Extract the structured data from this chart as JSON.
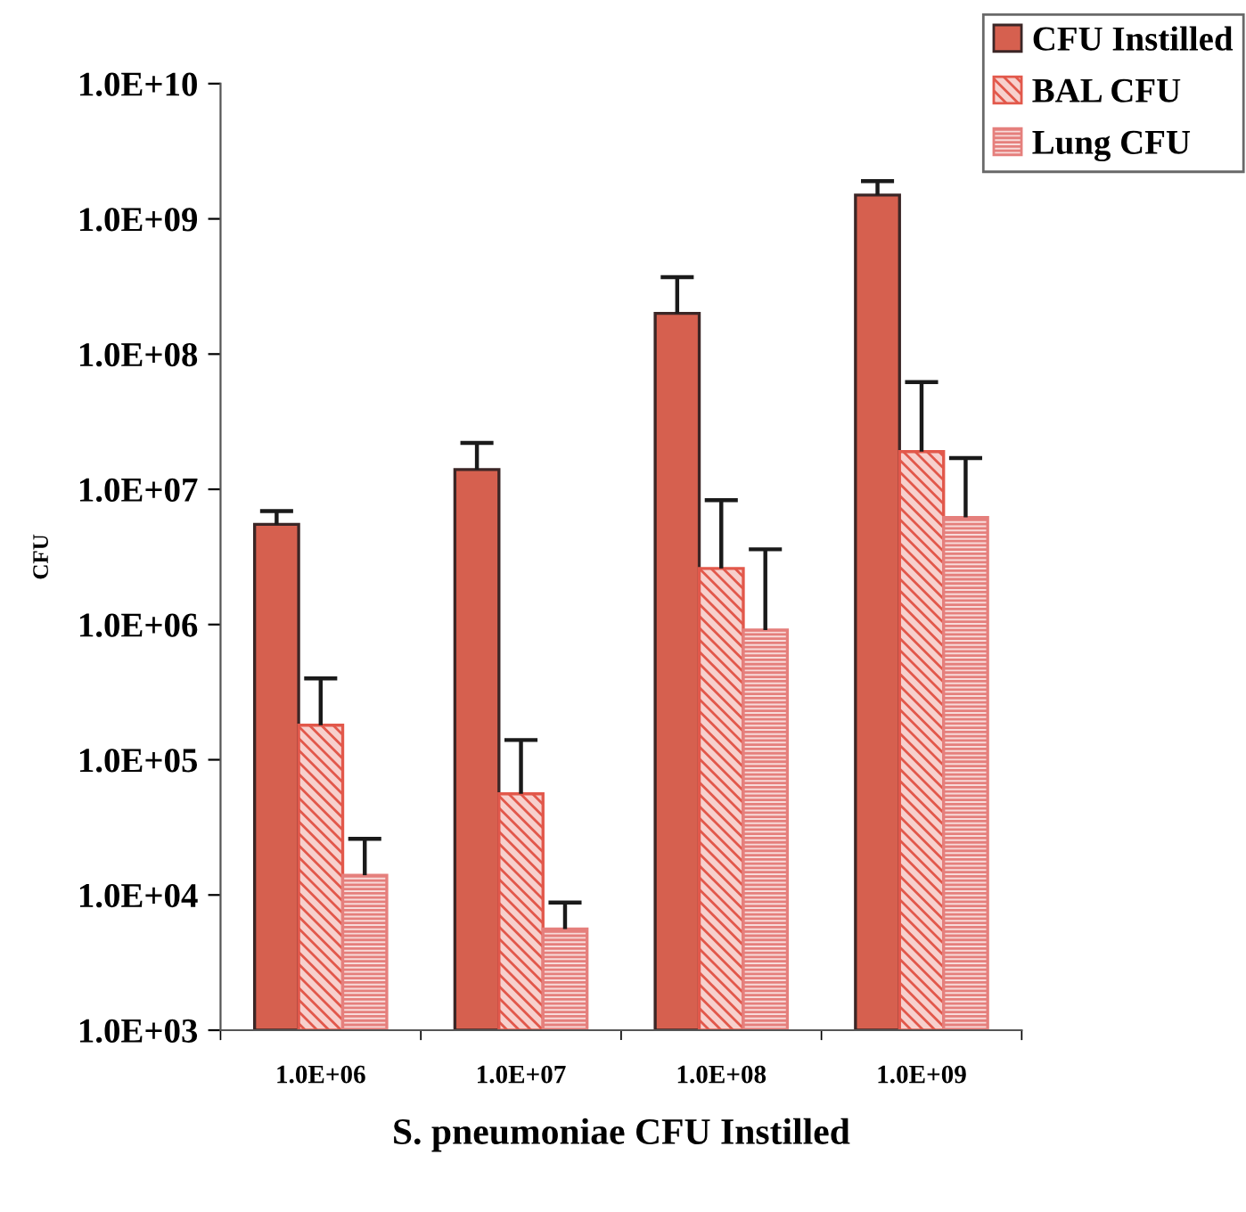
{
  "chart_data": {
    "type": "bar",
    "xlabel": "S. pneumoniae CFU Instilled",
    "ylabel": "CFU",
    "categories": [
      "1.0E+06",
      "1.0E+07",
      "1.0E+08",
      "1.0E+09"
    ],
    "series": [
      {
        "name": "CFU Instilled",
        "color": "#d6604f",
        "values": [
          5500000.0,
          14000000.0,
          200000000.0,
          1500000000.0
        ],
        "errors": [
          [
            5500000.0,
            6900000.0
          ],
          [
            14000000.0,
            22000000.0
          ],
          [
            200000000.0,
            370000000.0
          ],
          [
            1500000000.0,
            1900000000.0
          ]
        ]
      },
      {
        "name": "BAL CFU",
        "color": "#e2584b",
        "values": [
          180000.0,
          56000.0,
          2600000.0,
          19000000.0
        ],
        "errors": [
          [
            180000.0,
            400000.0
          ],
          [
            56000.0,
            140000.0
          ],
          [
            2600000.0,
            8300000.0
          ],
          [
            19000000.0,
            62000000.0
          ]
        ]
      },
      {
        "name": "Lung CFU",
        "color": "#e57f7c",
        "values": [
          14000.0,
          5600.0,
          910000.0,
          6200000.0
        ],
        "errors": [
          [
            14000.0,
            26000.0
          ],
          [
            5600.0,
            8800.0
          ],
          [
            910000.0,
            3600000.0
          ],
          [
            6200000.0,
            17000000.0
          ]
        ]
      }
    ],
    "log": "y",
    "ylim": [
      1000,
      10000000000.0
    ],
    "yticks": [
      {
        "value": 1000,
        "label": "1.0E+03"
      },
      {
        "value": 10000,
        "label": "1.0E+04"
      },
      {
        "value": 100000,
        "label": "1.0E+05"
      },
      {
        "value": 1000000,
        "label": "1.0E+06"
      },
      {
        "value": 10000000,
        "label": "1.0E+07"
      },
      {
        "value": 100000000,
        "label": "1.0E+08"
      },
      {
        "value": 1000000000,
        "label": "1.0E+09"
      },
      {
        "value": 10000000000,
        "label": "1.0E+10"
      }
    ],
    "legend": "top right"
  }
}
